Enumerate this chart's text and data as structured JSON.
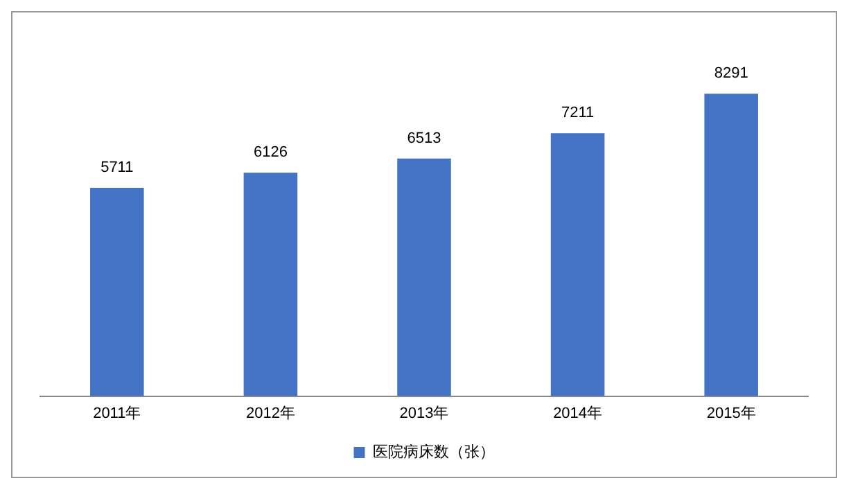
{
  "chart_data": {
    "type": "bar",
    "categories": [
      "2011年",
      "2012年",
      "2013年",
      "2014年",
      "2015年"
    ],
    "series": [
      {
        "name": "医院病床数（张）",
        "color": "#4472c4",
        "values": [
          5711,
          6126,
          6513,
          7211,
          8291
        ]
      }
    ],
    "tick_labels": "x",
    "grid": false,
    "legend": "bottom",
    "data_labels": true
  }
}
